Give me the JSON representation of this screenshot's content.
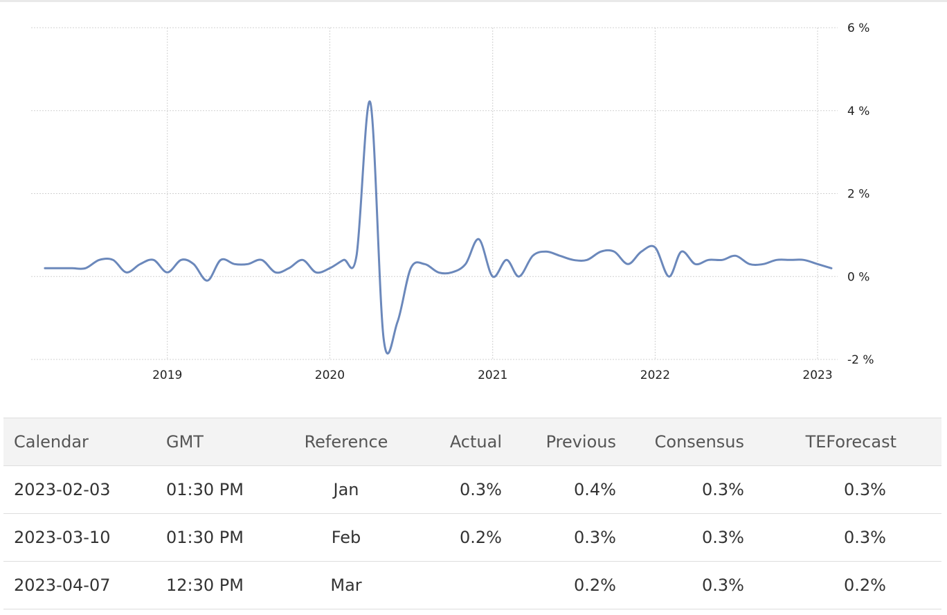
{
  "chart_data": {
    "type": "line",
    "x_range": [
      "2018-03-01",
      "2023-02-15"
    ],
    "ylim": [
      -2,
      6
    ],
    "y_ticks": [
      6,
      4,
      2,
      0,
      -2
    ],
    "y_tick_labels": [
      "6 %",
      "4 %",
      "2 %",
      "0 %",
      "-2 %"
    ],
    "x_ticks": [
      "2019-01-01",
      "2020-01-01",
      "2021-01-01",
      "2022-01-01",
      "2023-01-01"
    ],
    "x_tick_labels": [
      "2019",
      "2020",
      "2021",
      "2022",
      "2023"
    ],
    "grid": true,
    "line_color": "#6b88bb",
    "series": [
      {
        "points": [
          [
            "2018-04-01",
            0.2
          ],
          [
            "2018-05-01",
            0.2
          ],
          [
            "2018-06-01",
            0.2
          ],
          [
            "2018-07-01",
            0.2
          ],
          [
            "2018-08-01",
            0.4
          ],
          [
            "2018-09-01",
            0.4
          ],
          [
            "2018-10-01",
            0.1
          ],
          [
            "2018-11-01",
            0.3
          ],
          [
            "2018-12-01",
            0.4
          ],
          [
            "2019-01-01",
            0.1
          ],
          [
            "2019-02-01",
            0.4
          ],
          [
            "2019-03-01",
            0.3
          ],
          [
            "2019-04-01",
            -0.1
          ],
          [
            "2019-05-01",
            0.4
          ],
          [
            "2019-06-01",
            0.3
          ],
          [
            "2019-07-01",
            0.3
          ],
          [
            "2019-08-01",
            0.4
          ],
          [
            "2019-09-01",
            0.1
          ],
          [
            "2019-10-01",
            0.2
          ],
          [
            "2019-11-01",
            0.4
          ],
          [
            "2019-12-01",
            0.1
          ],
          [
            "2020-01-01",
            0.2
          ],
          [
            "2020-02-01",
            0.4
          ],
          [
            "2020-03-01",
            0.5
          ],
          [
            "2020-04-01",
            4.2
          ],
          [
            "2020-05-01",
            -1.5
          ],
          [
            "2020-06-01",
            -1.1
          ],
          [
            "2020-07-01",
            0.2
          ],
          [
            "2020-08-01",
            0.3
          ],
          [
            "2020-09-01",
            0.1
          ],
          [
            "2020-10-01",
            0.1
          ],
          [
            "2020-11-01",
            0.3
          ],
          [
            "2020-12-01",
            0.9
          ],
          [
            "2021-01-01",
            0.0
          ],
          [
            "2021-02-01",
            0.4
          ],
          [
            "2021-03-01",
            0.0
          ],
          [
            "2021-04-01",
            0.5
          ],
          [
            "2021-05-01",
            0.6
          ],
          [
            "2021-06-01",
            0.5
          ],
          [
            "2021-07-01",
            0.4
          ],
          [
            "2021-08-01",
            0.4
          ],
          [
            "2021-09-01",
            0.6
          ],
          [
            "2021-10-01",
            0.6
          ],
          [
            "2021-11-01",
            0.3
          ],
          [
            "2021-12-01",
            0.6
          ],
          [
            "2022-01-01",
            0.7
          ],
          [
            "2022-02-01",
            0.0
          ],
          [
            "2022-03-01",
            0.6
          ],
          [
            "2022-04-01",
            0.3
          ],
          [
            "2022-05-01",
            0.4
          ],
          [
            "2022-06-01",
            0.4
          ],
          [
            "2022-07-01",
            0.5
          ],
          [
            "2022-08-01",
            0.3
          ],
          [
            "2022-09-01",
            0.3
          ],
          [
            "2022-10-01",
            0.4
          ],
          [
            "2022-11-01",
            0.4
          ],
          [
            "2022-12-01",
            0.4
          ],
          [
            "2023-01-01",
            0.3
          ],
          [
            "2023-02-01",
            0.2
          ]
        ]
      }
    ]
  },
  "table": {
    "headers": {
      "calendar": "Calendar",
      "gmt": "GMT",
      "reference": "Reference",
      "actual": "Actual",
      "previous": "Previous",
      "consensus": "Consensus",
      "teforecast": "TEForecast"
    },
    "rows": [
      {
        "calendar": "2023-02-03",
        "gmt": "01:30 PM",
        "reference": "Jan",
        "actual": "0.3%",
        "previous": "0.4%",
        "consensus": "0.3%",
        "teforecast": "0.3%"
      },
      {
        "calendar": "2023-03-10",
        "gmt": "01:30 PM",
        "reference": "Feb",
        "actual": "0.2%",
        "previous": "0.3%",
        "consensus": "0.3%",
        "teforecast": "0.3%"
      },
      {
        "calendar": "2023-04-07",
        "gmt": "12:30 PM",
        "reference": "Mar",
        "actual": "",
        "previous": "0.2%",
        "consensus": "0.3%",
        "teforecast": "0.2%"
      }
    ]
  }
}
